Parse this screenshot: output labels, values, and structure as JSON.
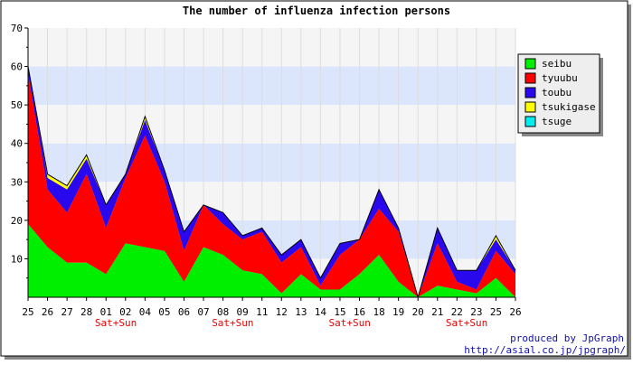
{
  "chart_data": {
    "type": "area",
    "title": "The number of influenza infection persons",
    "stacked": true,
    "grid": true,
    "legend_position": "right",
    "ylim": [
      0,
      70
    ],
    "yticks": [
      10,
      20,
      30,
      40,
      50,
      60,
      70
    ],
    "categories": [
      "25",
      "26",
      "27",
      "28",
      "01",
      "02",
      "04",
      "05",
      "06",
      "07",
      "08",
      "09",
      "11",
      "12",
      "13",
      "14",
      "15",
      "16",
      "18",
      "19",
      "20",
      "21",
      "22",
      "23",
      "25",
      "26"
    ],
    "weekend_marks": [
      {
        "after_index": 4,
        "label": "Sat+Sun"
      },
      {
        "after_index": 10,
        "label": "Sat+Sun"
      },
      {
        "after_index": 16,
        "label": "Sat+Sun"
      },
      {
        "after_index": 22,
        "label": "Sat+Sun"
      }
    ],
    "series": [
      {
        "name": "seibu",
        "color": "#00ee00",
        "values": [
          19,
          13,
          9,
          9,
          6,
          14,
          13,
          12,
          4,
          13,
          11,
          7,
          6,
          1,
          6,
          2,
          2,
          6,
          11,
          4,
          0,
          3,
          2,
          1,
          5,
          0
        ]
      },
      {
        "name": "tyuubu",
        "color": "#ff0000",
        "values": [
          39,
          15,
          13,
          23,
          12,
          17,
          29,
          18,
          8,
          11,
          8,
          8,
          11,
          8,
          7,
          1,
          9,
          9,
          12,
          13,
          0,
          11,
          2,
          1,
          7,
          6
        ]
      },
      {
        "name": "toubu",
        "color": "#2a08ee",
        "values": [
          2,
          3,
          6,
          4,
          6,
          1,
          4,
          3,
          5,
          0,
          3,
          1,
          1,
          2,
          2,
          2,
          3,
          0,
          5,
          1,
          0,
          4,
          3,
          5,
          3,
          1
        ]
      },
      {
        "name": "tsukigase",
        "color": "#ffff00",
        "values": [
          0,
          1,
          1,
          1,
          0,
          0,
          1,
          0,
          0,
          0,
          0,
          0,
          0,
          0,
          0,
          0,
          0,
          0,
          0,
          0,
          0,
          0,
          0,
          0,
          1,
          0
        ]
      },
      {
        "name": "tsuge",
        "color": "#00eeee",
        "values": [
          0,
          0,
          0,
          0,
          0,
          0,
          0,
          0,
          0,
          0,
          0,
          0,
          0,
          0,
          0,
          0,
          0,
          0,
          0,
          0,
          0,
          0,
          0,
          0,
          0,
          0
        ]
      }
    ]
  },
  "credits": {
    "line1": "produced by JpGraph",
    "line2": "http://asial.co.jp/jpgraph/"
  }
}
